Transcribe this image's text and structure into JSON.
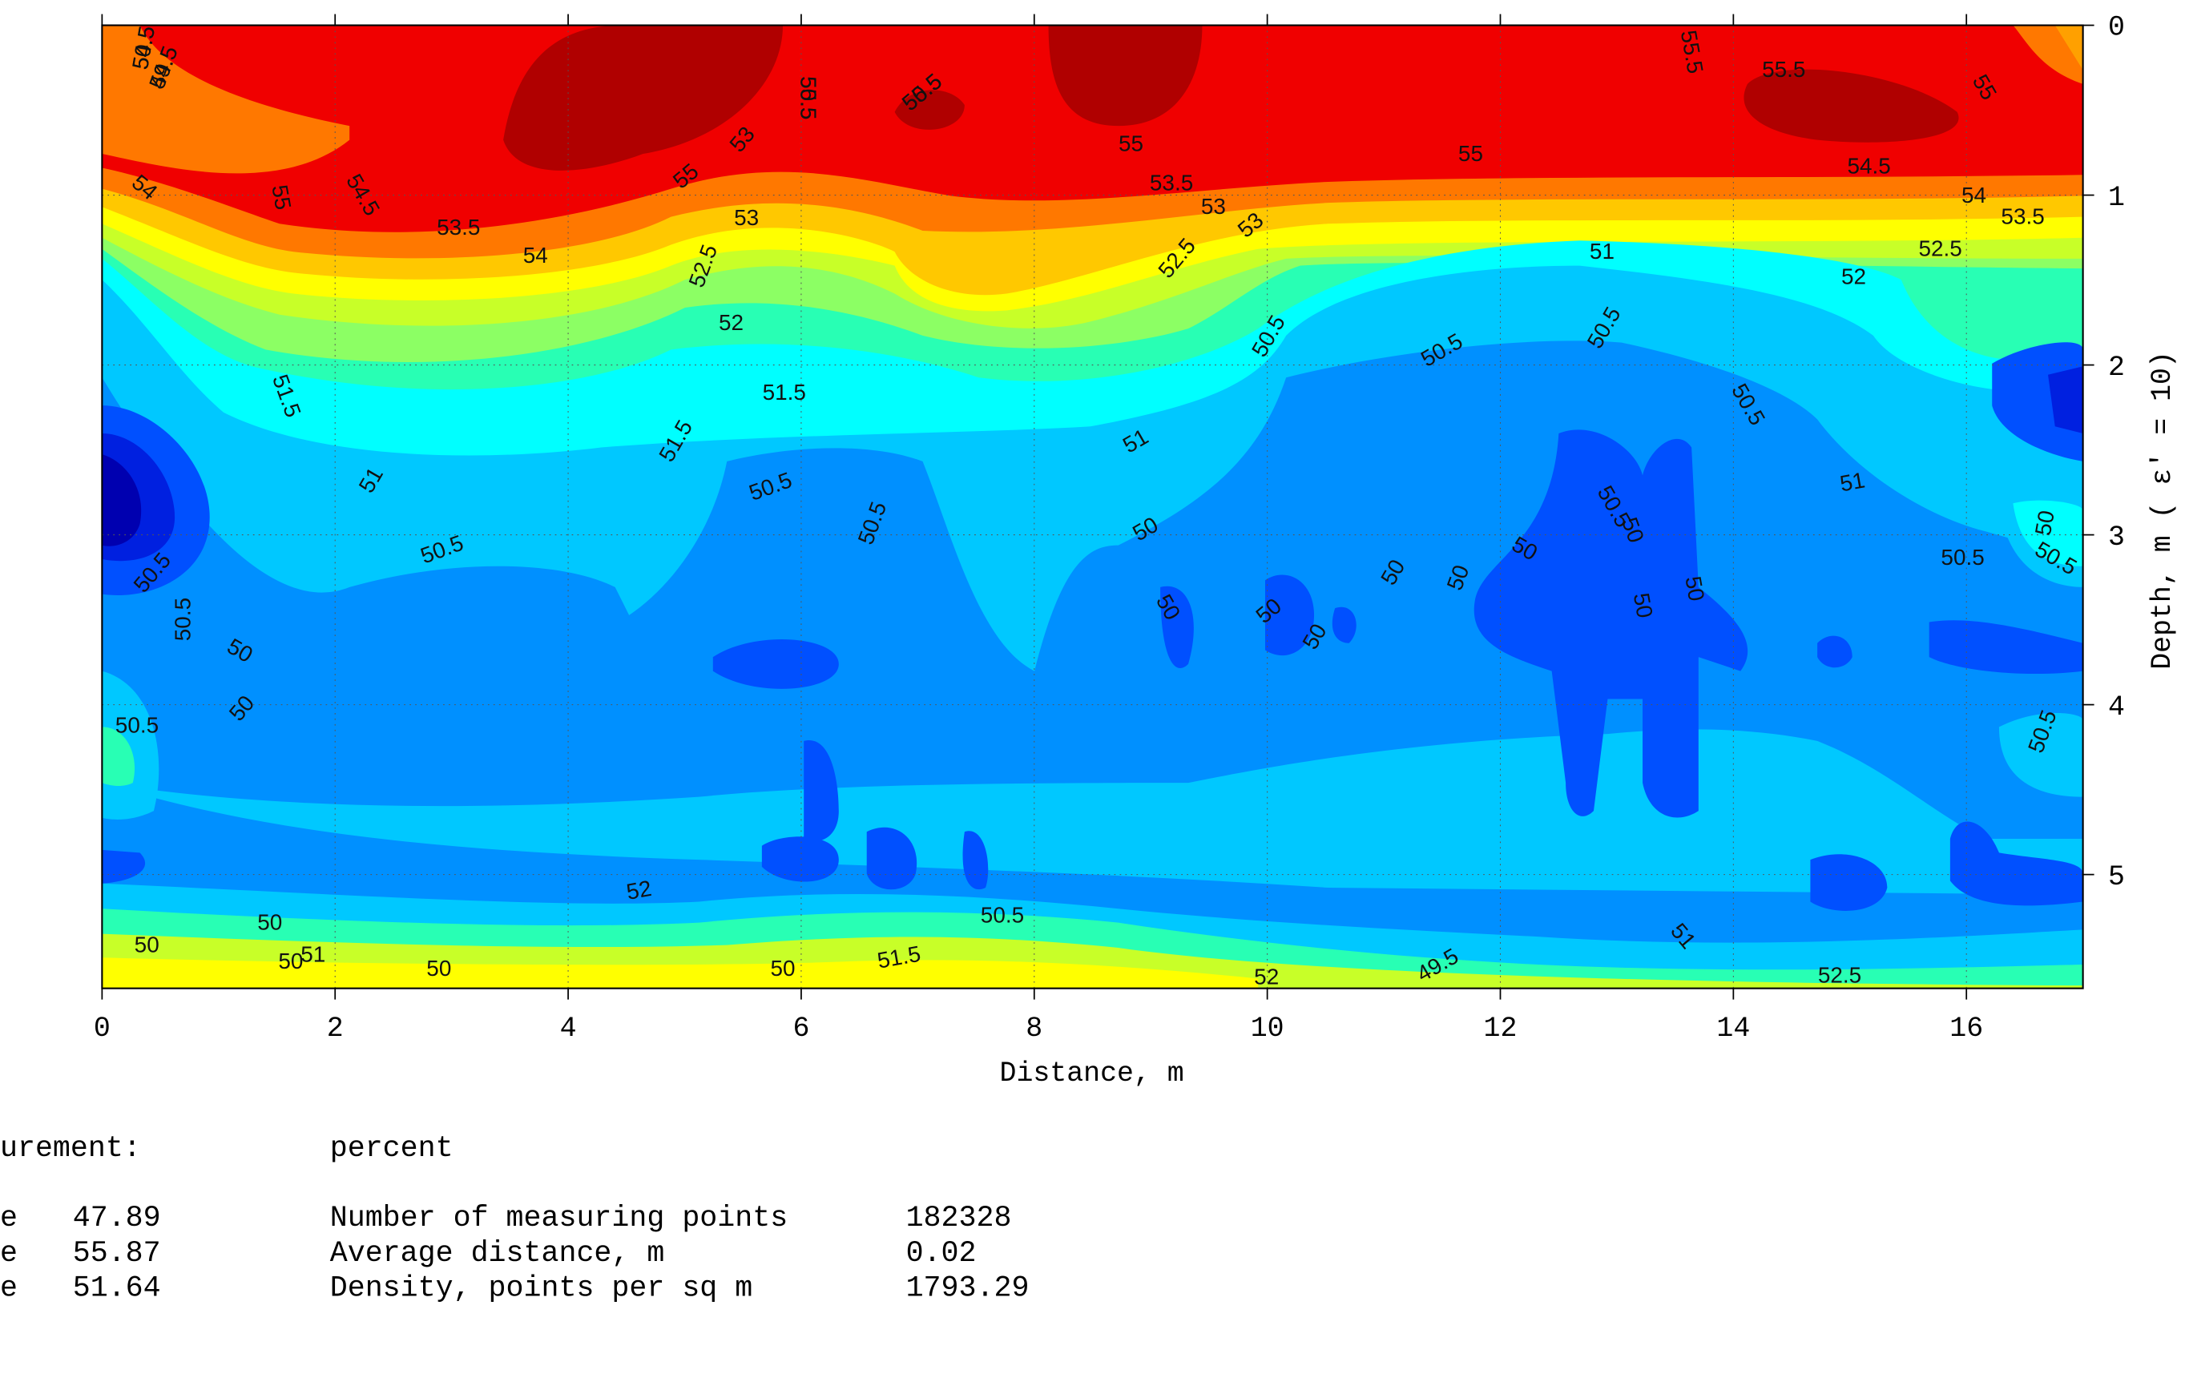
{
  "chart_data": {
    "type": "contour",
    "xlabel": "Distance, m",
    "ylabel": "Depth, m  ( ε′ = 10)",
    "xlim": [
      0,
      17
    ],
    "xticks": [
      0,
      2,
      4,
      6,
      8,
      10,
      12,
      14,
      16
    ],
    "ylim": [
      0,
      5.67
    ],
    "yticks": [
      0,
      1,
      2,
      3,
      4,
      5
    ],
    "grid": true,
    "contour_labels": [
      54.5,
      54.5,
      55.5,
      55.5,
      55.5,
      55.5,
      55,
      55,
      55,
      54.5,
      54.5,
      55,
      55,
      53,
      54,
      53.5,
      54,
      53.5,
      53,
      52.5,
      52.5,
      53,
      54,
      53.5,
      53,
      52.5,
      52,
      51.5,
      51,
      52,
      51.5,
      51.5,
      50.5,
      51,
      50.5,
      51,
      50.5,
      50.5,
      50.5,
      50.5,
      50,
      50.5,
      51,
      50.5,
      50.5,
      50,
      50,
      50,
      50,
      50,
      50.5,
      50,
      50,
      50,
      50,
      50,
      50,
      50.5,
      50,
      50.5,
      50.5,
      50.5,
      50,
      50,
      50,
      50,
      50,
      50.5,
      51.5,
      51,
      52,
      49.5,
      51,
      52,
      52.5,
      50.5,
      49.5,
      50.5,
      50.5
    ]
  },
  "stats": {
    "measurement_label": "urement:",
    "unit": "percent",
    "min_label": "e",
    "min": 47.89,
    "max_label": "e",
    "max": 55.87,
    "avg_label": "e",
    "avg": 51.64,
    "rows": [
      {
        "label": "Number of measuring points",
        "value": 182328
      },
      {
        "label": "Average distance, m",
        "value": 0.02
      },
      {
        "label": "Density, points per sq m",
        "value": 1793.29
      }
    ]
  }
}
